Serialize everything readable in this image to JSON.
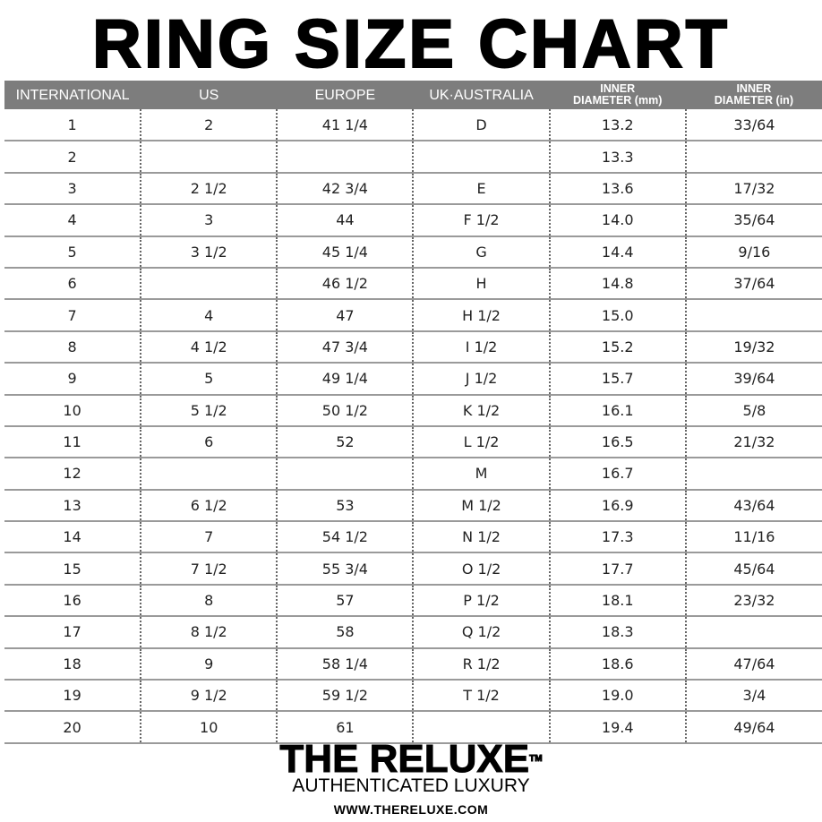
{
  "title": "RING SIZE CHART",
  "colors": {
    "header_bg": "#7d7d7d",
    "header_text": "#ffffff",
    "row_line": "#9a9a9a"
  },
  "headers": [
    "INTERNATIONAL",
    "US",
    "EUROPE",
    "UK·AUSTRALIA",
    [
      "INNER",
      "DIAMETER (mm)"
    ],
    [
      "INNER",
      "DIAMETER (in)"
    ]
  ],
  "rows": [
    [
      "1",
      "2",
      "41 1/4",
      "D",
      "13.2",
      "33/64"
    ],
    [
      "2",
      "",
      "",
      "",
      "13.3",
      ""
    ],
    [
      "3",
      "2 1/2",
      "42 3/4",
      "E",
      "13.6",
      "17/32"
    ],
    [
      "4",
      "3",
      "44",
      "F 1/2",
      "14.0",
      "35/64"
    ],
    [
      "5",
      "3 1/2",
      "45 1/4",
      "G",
      "14.4",
      "9/16"
    ],
    [
      "6",
      "",
      "46 1/2",
      "H",
      "14.8",
      "37/64"
    ],
    [
      "7",
      "4",
      "47",
      "H 1/2",
      "15.0",
      ""
    ],
    [
      "8",
      "4 1/2",
      "47 3/4",
      "I 1/2",
      "15.2",
      "19/32"
    ],
    [
      "9",
      "5",
      "49 1/4",
      "J 1/2",
      "15.7",
      "39/64"
    ],
    [
      "10",
      "5 1/2",
      "50 1/2",
      "K 1/2",
      "16.1",
      "5/8"
    ],
    [
      "11",
      "6",
      "52",
      "L 1/2",
      "16.5",
      "21/32"
    ],
    [
      "12",
      "",
      "",
      "M",
      "16.7",
      ""
    ],
    [
      "13",
      "6 1/2",
      "53",
      "M 1/2",
      "16.9",
      "43/64"
    ],
    [
      "14",
      "7",
      "54 1/2",
      "N 1/2",
      "17.3",
      "11/16"
    ],
    [
      "15",
      "7 1/2",
      "55 3/4",
      "O 1/2",
      "17.7",
      "45/64"
    ],
    [
      "16",
      "8",
      "57",
      "P 1/2",
      "18.1",
      "23/32"
    ],
    [
      "17",
      "8 1/2",
      "58",
      "Q 1/2",
      "18.3",
      ""
    ],
    [
      "18",
      "9",
      "58 1/4",
      "R 1/2",
      "18.6",
      "47/64"
    ],
    [
      "19",
      "9 1/2",
      "59 1/2",
      "T 1/2",
      "19.0",
      "3/4"
    ],
    [
      "20",
      "10",
      "61",
      "",
      "19.4",
      "49/64"
    ]
  ],
  "brand": {
    "name": "THE RELUXE",
    "tm": "TM",
    "tagline": "AUTHENTICATED LUXURY",
    "url": "WWW.THERELUXE.COM"
  }
}
